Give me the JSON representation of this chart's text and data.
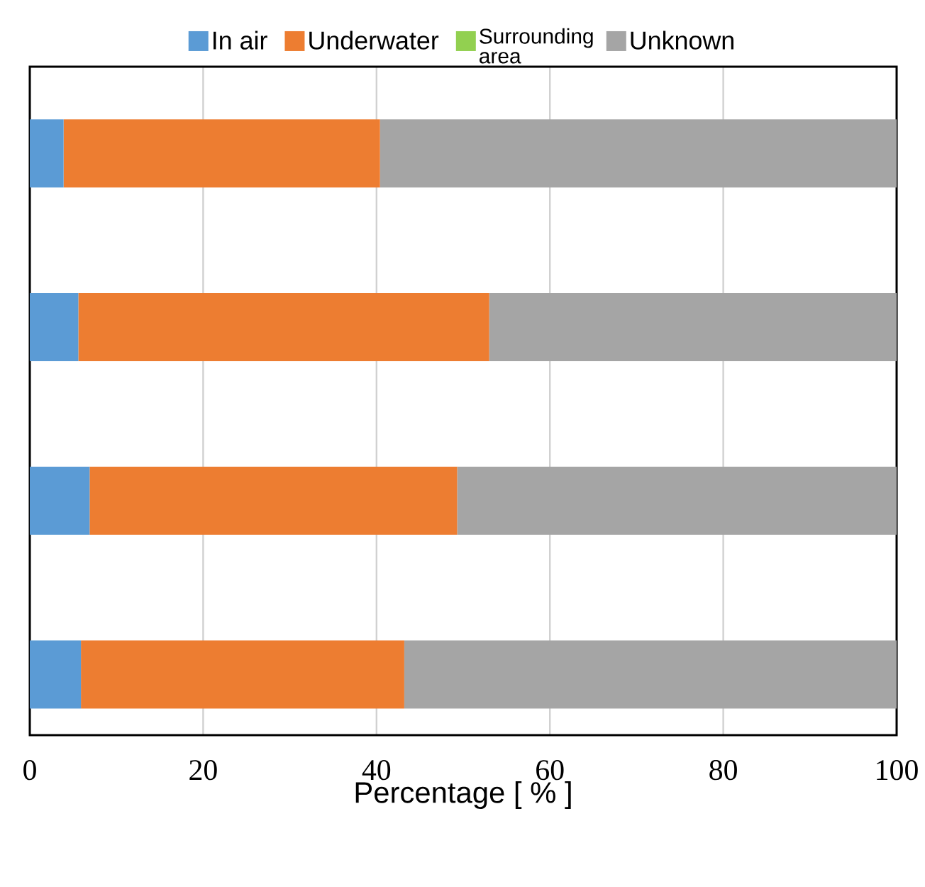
{
  "chart_data": {
    "type": "bar",
    "orientation": "horizontal",
    "stacked": true,
    "categories": [
      null,
      null,
      null,
      null
    ],
    "series": [
      {
        "name": "In air",
        "color": "#5b9bd5",
        "values": [
          3.9,
          5.6,
          6.9,
          5.9
        ]
      },
      {
        "name": "Underwater",
        "color": "#ed7d31",
        "values": [
          36.5,
          47.4,
          42.4,
          37.3
        ]
      },
      {
        "name": "Surrounding area",
        "color": "#92d050",
        "values": [
          0,
          0,
          0,
          0
        ]
      },
      {
        "name": "Unknown",
        "color": "#a5a5a5",
        "values": [
          59.6,
          47.0,
          50.7,
          56.8
        ]
      }
    ],
    "xlabel": "Percentage [ % ]",
    "xlim": [
      0,
      100
    ],
    "xticks": [
      0,
      20,
      40,
      60,
      80,
      100
    ],
    "grid": "x",
    "legend": "top",
    "tick_labels": "x"
  }
}
